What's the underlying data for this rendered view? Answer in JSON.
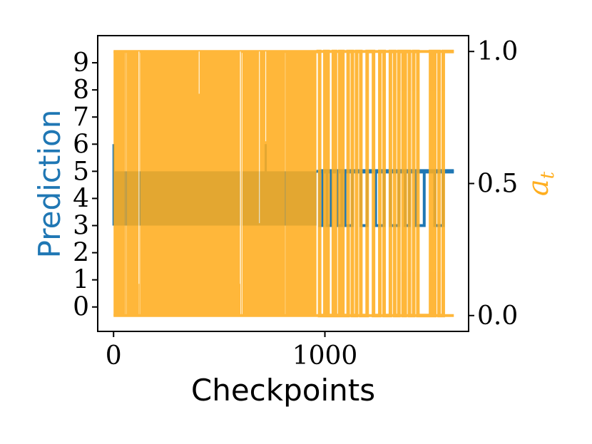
{
  "chart_data": {
    "type": "line",
    "xlabel": "Checkpoints",
    "ylabel": "Prediction",
    "ylabel_right": "a",
    "ylabel_right_sub": "t",
    "xlim": [
      -75,
      1680
    ],
    "ylim": [
      -0.9,
      10.0
    ],
    "ylim_right": [
      -0.06,
      1.06
    ],
    "xticks": [
      0,
      1000
    ],
    "yticks": [
      0,
      1,
      2,
      3,
      4,
      5,
      6,
      7,
      8,
      9
    ],
    "yticks_right": [
      0.0,
      0.5,
      1.0
    ],
    "colors": {
      "prediction": "#1f77b4",
      "a_t": "#ffae1f"
    },
    "series": [
      {
        "axis": "left",
        "color": "#1f77b4",
        "band_low": 3,
        "band_high": 5,
        "spikes_high": [
          {
            "x": 0,
            "y": 6
          },
          {
            "x": 720,
            "y": 6
          }
        ],
        "solid_segments": [
          [
            0,
            600
          ],
          [
            610,
            960
          ]
        ],
        "oscillation_x": [
          975,
          990,
          1010,
          1030,
          1060,
          1080,
          1095,
          1130,
          1170,
          1200,
          1240,
          1280,
          1310,
          1350,
          1380,
          1400,
          1430,
          1470,
          1520,
          1560
        ],
        "end_x": 1610
      },
      {
        "axis": "right",
        "color": "#ffae1f",
        "low": 0,
        "high": 1,
        "solid_range": [
          0,
          960
        ],
        "gaps": [
          [
            55,
            62
          ],
          [
            120,
            127
          ],
          [
            600,
            610
          ],
          [
            810,
            816
          ]
        ],
        "inner_notches": [
          {
            "x": 120,
            "low": 0.12
          },
          {
            "x": 405,
            "low": 0.84
          },
          {
            "x": 600,
            "low": 0.12
          },
          {
            "x": 690,
            "low": 0.35
          },
          {
            "x": 720,
            "low": 0.66
          }
        ],
        "pulse_x": [
          975,
          1000,
          1015,
          1040,
          1050,
          1070,
          1085,
          1110,
          1130,
          1150,
          1170,
          1200,
          1230,
          1260,
          1280,
          1310,
          1330,
          1350,
          1370,
          1380,
          1400,
          1420,
          1440,
          1500,
          1510,
          1520,
          1540,
          1560
        ],
        "end_x": 1610
      }
    ],
    "legend": "none",
    "grid": false
  }
}
